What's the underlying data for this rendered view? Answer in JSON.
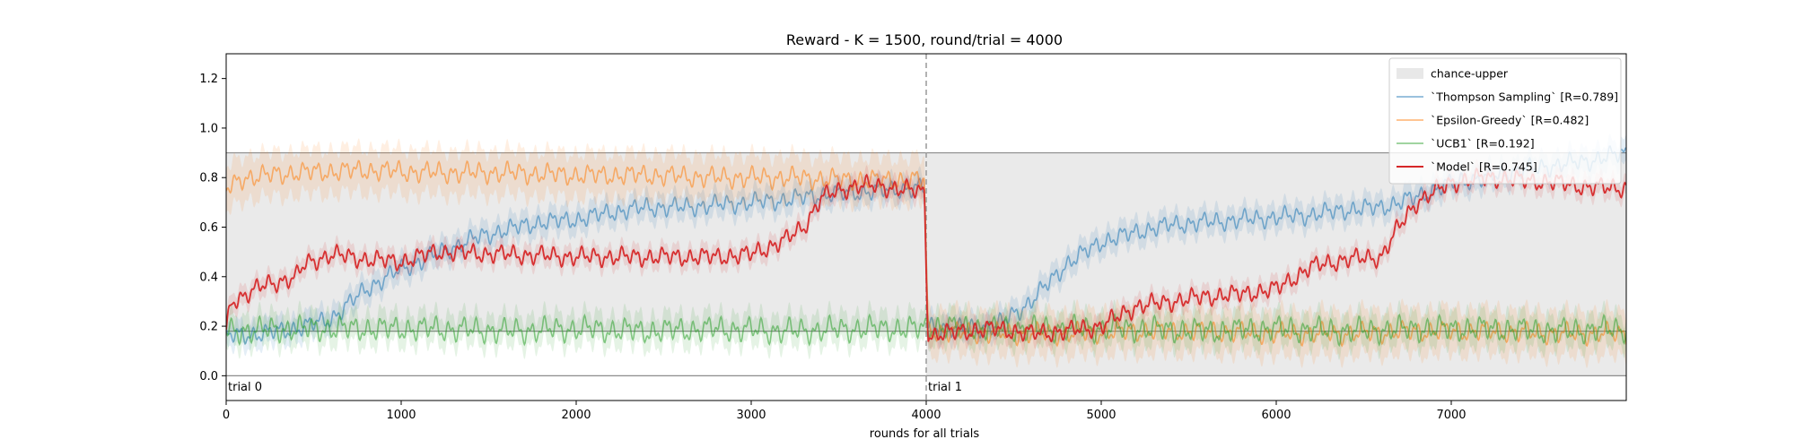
{
  "chart_data": {
    "type": "line",
    "title": "Reward - K = 1500, round/trial = 4000",
    "xlabel": "rounds for all trials",
    "ylabel": "",
    "xlim": [
      0,
      8000
    ],
    "ylim": [
      -0.1,
      1.3
    ],
    "xticks": [
      0,
      1000,
      2000,
      3000,
      4000,
      5000,
      6000,
      7000
    ],
    "yticks": [
      0.0,
      0.2,
      0.4,
      0.6,
      0.8,
      1.0,
      1.2
    ],
    "grid": false,
    "legend_position": "top-right",
    "trial_boundaries": [
      0,
      4000
    ],
    "trial_labels": [
      "trial 0",
      "trial 1"
    ],
    "horizontal_lines": [
      0.0,
      0.18,
      0.9
    ],
    "chance_upper_band": {
      "name": "chance-upper",
      "color": "#d9d9d9",
      "segments": [
        {
          "x": [
            0,
            4000
          ],
          "lower": 0.18,
          "upper": 0.9
        },
        {
          "x": [
            4000,
            8000
          ],
          "lower": 0.0,
          "upper": 0.9
        }
      ]
    },
    "series": [
      {
        "name": "`Thompson Sampling` [R=0.789]",
        "color": "#1f77b4",
        "points": [
          [
            0,
            0.16
          ],
          [
            200,
            0.17
          ],
          [
            400,
            0.19
          ],
          [
            600,
            0.23
          ],
          [
            800,
            0.35
          ],
          [
            1000,
            0.43
          ],
          [
            1200,
            0.49
          ],
          [
            1400,
            0.55
          ],
          [
            1600,
            0.59
          ],
          [
            1800,
            0.62
          ],
          [
            2000,
            0.63
          ],
          [
            2200,
            0.66
          ],
          [
            2400,
            0.68
          ],
          [
            2600,
            0.68
          ],
          [
            2800,
            0.69
          ],
          [
            3000,
            0.7
          ],
          [
            3200,
            0.71
          ],
          [
            3400,
            0.73
          ],
          [
            3600,
            0.74
          ],
          [
            3800,
            0.75
          ],
          [
            3990,
            0.76
          ],
          [
            4010,
            0.2
          ],
          [
            4200,
            0.19
          ],
          [
            4400,
            0.2
          ],
          [
            4600,
            0.3
          ],
          [
            4800,
            0.45
          ],
          [
            5000,
            0.54
          ],
          [
            5200,
            0.58
          ],
          [
            5400,
            0.61
          ],
          [
            5600,
            0.62
          ],
          [
            5800,
            0.63
          ],
          [
            6000,
            0.64
          ],
          [
            6200,
            0.65
          ],
          [
            6400,
            0.67
          ],
          [
            6600,
            0.68
          ],
          [
            6800,
            0.72
          ],
          [
            7000,
            0.78
          ],
          [
            7200,
            0.8
          ],
          [
            7400,
            0.83
          ],
          [
            7600,
            0.85
          ],
          [
            7800,
            0.87
          ],
          [
            8000,
            0.9
          ]
        ]
      },
      {
        "name": "`Epsilon-Greedy` [R=0.482]",
        "color": "#ff7f0e",
        "points": [
          [
            0,
            0.75
          ],
          [
            100,
            0.8
          ],
          [
            400,
            0.82
          ],
          [
            800,
            0.83
          ],
          [
            1200,
            0.82
          ],
          [
            1600,
            0.82
          ],
          [
            2000,
            0.81
          ],
          [
            2400,
            0.81
          ],
          [
            2800,
            0.8
          ],
          [
            3200,
            0.8
          ],
          [
            3600,
            0.79
          ],
          [
            3990,
            0.79
          ],
          [
            4010,
            0.18
          ],
          [
            4400,
            0.17
          ],
          [
            4800,
            0.17
          ],
          [
            5200,
            0.18
          ],
          [
            5600,
            0.18
          ],
          [
            6000,
            0.17
          ],
          [
            6400,
            0.17
          ],
          [
            6800,
            0.18
          ],
          [
            7200,
            0.18
          ],
          [
            7600,
            0.17
          ],
          [
            8000,
            0.17
          ]
        ]
      },
      {
        "name": "`UCB1` [R=0.192]",
        "color": "#2ca02c",
        "points": [
          [
            0,
            0.18
          ],
          [
            400,
            0.19
          ],
          [
            800,
            0.19
          ],
          [
            1200,
            0.19
          ],
          [
            1600,
            0.18
          ],
          [
            2000,
            0.19
          ],
          [
            2400,
            0.18
          ],
          [
            2800,
            0.19
          ],
          [
            3200,
            0.18
          ],
          [
            3600,
            0.19
          ],
          [
            3990,
            0.19
          ],
          [
            4010,
            0.2
          ],
          [
            4400,
            0.19
          ],
          [
            4800,
            0.19
          ],
          [
            5200,
            0.19
          ],
          [
            5600,
            0.18
          ],
          [
            6000,
            0.19
          ],
          [
            6400,
            0.18
          ],
          [
            6800,
            0.19
          ],
          [
            7200,
            0.19
          ],
          [
            7600,
            0.18
          ],
          [
            8000,
            0.19
          ]
        ]
      },
      {
        "name": "`Model` [R=0.745]",
        "color": "#d62728",
        "points": [
          [
            0,
            0.18
          ],
          [
            30,
            0.3
          ],
          [
            200,
            0.36
          ],
          [
            400,
            0.4
          ],
          [
            450,
            0.45
          ],
          [
            600,
            0.49
          ],
          [
            800,
            0.47
          ],
          [
            1000,
            0.46
          ],
          [
            1200,
            0.5
          ],
          [
            1600,
            0.49
          ],
          [
            2000,
            0.48
          ],
          [
            2400,
            0.48
          ],
          [
            2800,
            0.48
          ],
          [
            3000,
            0.49
          ],
          [
            3200,
            0.55
          ],
          [
            3300,
            0.6
          ],
          [
            3400,
            0.72
          ],
          [
            3600,
            0.77
          ],
          [
            3800,
            0.76
          ],
          [
            3990,
            0.74
          ],
          [
            4010,
            0.16
          ],
          [
            4200,
            0.18
          ],
          [
            4400,
            0.19
          ],
          [
            4600,
            0.17
          ],
          [
            4800,
            0.18
          ],
          [
            5000,
            0.2
          ],
          [
            5200,
            0.28
          ],
          [
            5400,
            0.3
          ],
          [
            5600,
            0.32
          ],
          [
            5800,
            0.33
          ],
          [
            6000,
            0.35
          ],
          [
            6200,
            0.44
          ],
          [
            6400,
            0.47
          ],
          [
            6600,
            0.48
          ],
          [
            6700,
            0.6
          ],
          [
            6800,
            0.7
          ],
          [
            7000,
            0.78
          ],
          [
            7200,
            0.8
          ],
          [
            7400,
            0.79
          ],
          [
            7600,
            0.78
          ],
          [
            7800,
            0.76
          ],
          [
            8000,
            0.76
          ]
        ]
      }
    ]
  }
}
